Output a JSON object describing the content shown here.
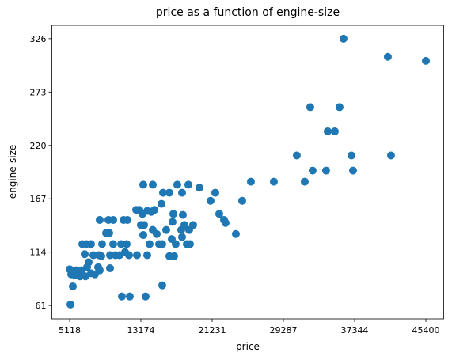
{
  "chart_data": {
    "type": "scatter",
    "title": "price as a function of engine-size",
    "x_label": "price",
    "y_label": "engine-size",
    "color": "#1f77b4",
    "xlim": [
      3104,
      47414
    ],
    "ylim": [
      47.75,
      339.25
    ],
    "xticks": [
      5118,
      13174,
      21231,
      29287,
      37344,
      45400
    ],
    "yticks": [
      61,
      114,
      167,
      220,
      273,
      326
    ],
    "x": [
      36085,
      41097,
      45400,
      32326,
      35638,
      34295,
      35100,
      30805,
      36980,
      41455,
      32594,
      34116,
      37160,
      31700,
      28209,
      25613,
      24629,
      21586,
      21049,
      22033,
      22570,
      22749,
      23913,
      19796,
      18543,
      17290,
      14516,
      13442,
      17827,
      16395,
      15679,
      15500,
      16842,
      17916,
      16752,
      18095,
      19080,
      18632,
      17737,
      16037,
      13889,
      12994,
      12636,
      14695,
      14337,
      13352,
      13173,
      13531,
      13442,
      13889,
      12725,
      11383,
      11562,
      10935,
      10040,
      8787,
      7534,
      6549,
      7000,
      9503,
      10040,
      8519,
      11204,
      11651,
      9593,
      9235,
      6818,
      7802,
      8429,
      9683,
      10309,
      10757,
      11830,
      8698,
      7266,
      7087,
      6460,
      5834,
      5118,
      5297,
      5745,
      6281,
      6907,
      7534,
      7981,
      8519,
      8340,
      9683,
      5476,
      5208,
      11025,
      11920,
      13710,
      15589,
      15232,
      15589,
      17111,
      18364,
      18721,
      16932,
      16395,
      14516,
      14963,
      16663,
      17827,
      14158
    ],
    "values": [
      326,
      308,
      304,
      258,
      258,
      234,
      234,
      210,
      210,
      210,
      195,
      195,
      195,
      184,
      184,
      184,
      165,
      173,
      165,
      152,
      146,
      143,
      132,
      178,
      181,
      181,
      181,
      181,
      173,
      173,
      173,
      162,
      152,
      151,
      144,
      141,
      141,
      136,
      136,
      136,
      155,
      156,
      156,
      156,
      154,
      152,
      141,
      141,
      131,
      111,
      111,
      114,
      122,
      122,
      122,
      122,
      122,
      122,
      122,
      146,
      146,
      146,
      146,
      146,
      133,
      133,
      112,
      111,
      111,
      111,
      111,
      111,
      111,
      110,
      104,
      99,
      96,
      96,
      97,
      92,
      91,
      90,
      90,
      93,
      92,
      96,
      99,
      98,
      80,
      62,
      70,
      70,
      70,
      81,
      122,
      122,
      122,
      122,
      122,
      110,
      110,
      136,
      132,
      127,
      129,
      122
    ]
  }
}
